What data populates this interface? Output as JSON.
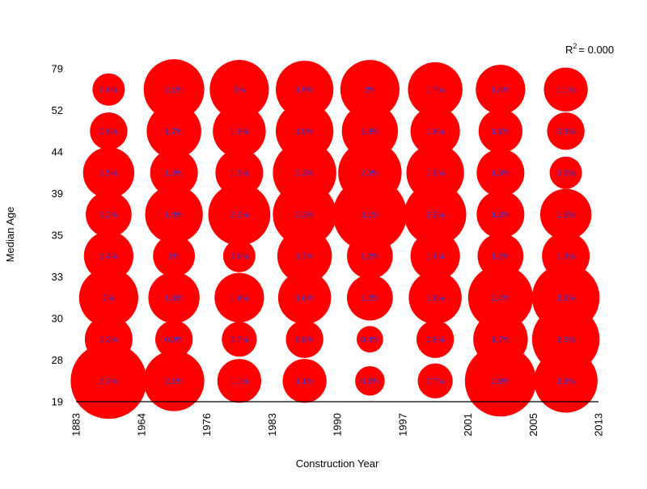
{
  "chart_data": {
    "type": "scatter",
    "subtype": "bubble",
    "title": "",
    "xlabel": "Construction Year",
    "ylabel": "Median Age",
    "x_tick_labels": [
      "1883",
      "1964",
      "1976",
      "1983",
      "1990",
      "1997",
      "2001",
      "2005",
      "2013"
    ],
    "y_tick_labels": [
      "19",
      "28",
      "30",
      "33",
      "35",
      "39",
      "44",
      "52",
      "79"
    ],
    "annotation": {
      "prefix": "R",
      "superscript": "2",
      "text": "= 0.000"
    },
    "grid": false,
    "colors": {
      "bubble": "#ff0000",
      "label": "#3333cc",
      "axis": "#000000"
    },
    "y_bins": [
      "19-28",
      "28-30",
      "30-33",
      "33-35",
      "35-39",
      "39-44",
      "44-52",
      "52-79"
    ],
    "x_bins": [
      "1883-1964",
      "1964-1976",
      "1976-1983",
      "1983-1990",
      "1990-1997",
      "1997-2001",
      "2001-2005",
      "2005-2013"
    ],
    "cells": [
      [
        3.3,
        2.1,
        1.1,
        1.1,
        0.5,
        0.7,
        2.9,
        2.3
      ],
      [
        1.3,
        0.8,
        0.7,
        0.8,
        0.4,
        0.8,
        1.7,
        2.6
      ],
      [
        2,
        1.5,
        1.4,
        1.6,
        1.2,
        1.6,
        2.4,
        2.6
      ],
      [
        1.4,
        1,
        0.6,
        1.7,
        1.2,
        1.4,
        1.2,
        1.3
      ],
      [
        1.2,
        1.9,
        2.2,
        2.3,
        3.1,
        2.2,
        1.3,
        1.5
      ],
      [
        1.5,
        1.3,
        1.3,
        2.3,
        2.3,
        1.9,
        1.3,
        0.6
      ],
      [
        0.8,
        1.7,
        1.6,
        1.9,
        1.8,
        1.4,
        1.1,
        0.8
      ],
      [
        0.6,
        2.1,
        2,
        1.9,
        2,
        1.7,
        1.4,
        1.1
      ]
    ],
    "cell_labels": [
      [
        "3.3%",
        "2.1%",
        "1.1%",
        "1.1%",
        "0.5%",
        "0.7%",
        "2.9%",
        "2.3%"
      ],
      [
        "1.3%",
        "0.8%",
        "0.7%",
        "0.8%",
        "0.4%",
        "0.8%",
        "1.7%",
        "2.6%"
      ],
      [
        "2%",
        "1.5%",
        "1.4%",
        "1.6%",
        "1.2%",
        "1.6%",
        "2.4%",
        "2.6%"
      ],
      [
        "1.4%",
        "1%",
        "0.6%",
        "1.7%",
        "1.2%",
        "1.4%",
        "1.2%",
        "1.3%"
      ],
      [
        "1.2%",
        "1.9%",
        "2.2%",
        "2.3%",
        "3.1%",
        "2.2%",
        "1.3%",
        "1.5%"
      ],
      [
        "1.5%",
        "1.3%",
        "1.3%",
        "2.3%",
        "2.3%",
        "1.9%",
        "1.3%",
        "0.6%"
      ],
      [
        "0.8%",
        "1.7%",
        "1.6%",
        "1.9%",
        "1.8%",
        "1.4%",
        "1.1%",
        "0.8%"
      ],
      [
        "0.6%",
        "2.1%",
        "2%",
        "1.9%",
        "2%",
        "1.7%",
        "1.4%",
        "1.1%"
      ]
    ]
  }
}
